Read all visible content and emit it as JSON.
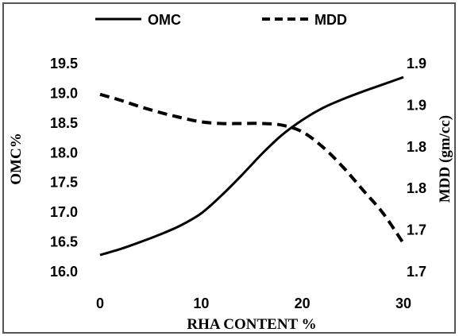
{
  "chart_data": {
    "type": "line",
    "title": "",
    "xlabel": "RHA CONTENT %",
    "ylabel_left": "OMC%",
    "ylabel_right": "MDD (gm/cc)",
    "xlim": [
      0,
      30
    ],
    "ylim_left": [
      16.0,
      19.5
    ],
    "ylim_right": [
      1.65,
      1.9
    ],
    "x_ticks": [
      "0",
      "10",
      "20",
      "30"
    ],
    "y_left_ticks": [
      "16.0",
      "16.5",
      "17.0",
      "17.5",
      "18.0",
      "18.5",
      "19.0",
      "19.5"
    ],
    "y_right_ticks": [
      "1.7",
      "1.7",
      "1.8",
      "1.8",
      "1.9",
      "1.9"
    ],
    "grid": false,
    "legend_position": "top",
    "series": [
      {
        "name": "OMC",
        "axis": "left",
        "style": "solid",
        "x": [
          0,
          2,
          4,
          6,
          8,
          10,
          12,
          14,
          16,
          18,
          20,
          22,
          24,
          26,
          28,
          30
        ],
        "y": [
          16.28,
          16.38,
          16.5,
          16.63,
          16.78,
          16.98,
          17.28,
          17.62,
          17.98,
          18.3,
          18.55,
          18.75,
          18.9,
          19.03,
          19.15,
          19.27
        ]
      },
      {
        "name": "MDD",
        "axis": "right",
        "style": "dashed",
        "x": [
          0,
          2,
          4,
          6,
          8,
          10,
          12,
          14,
          16,
          18,
          20,
          22,
          24,
          26,
          28,
          30
        ],
        "y": [
          1.863,
          1.856,
          1.848,
          1.841,
          1.835,
          1.83,
          1.828,
          1.828,
          1.828,
          1.826,
          1.818,
          1.8,
          1.776,
          1.748,
          1.72,
          1.684
        ]
      }
    ]
  }
}
